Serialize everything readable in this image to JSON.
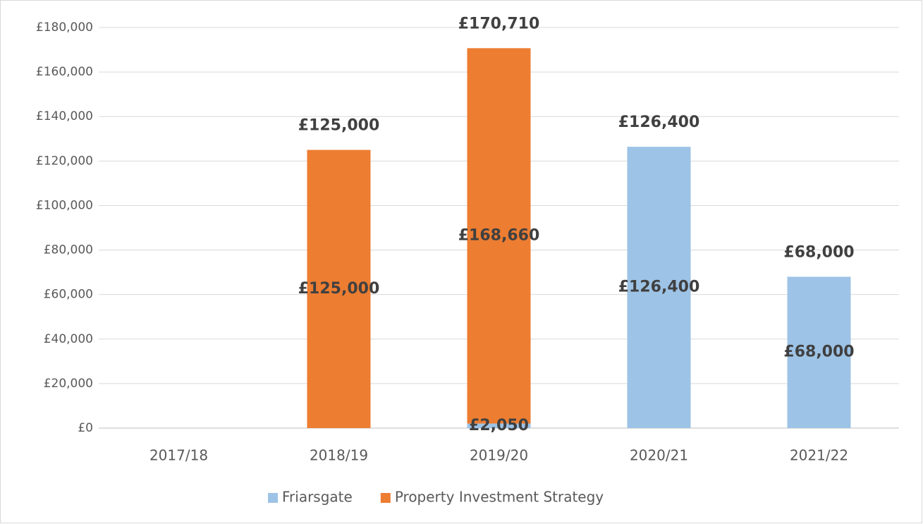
{
  "chart_data": {
    "type": "stacked_bar",
    "categories": [
      "2017/18",
      "2018/19",
      "2019/20",
      "2020/21",
      "2021/22"
    ],
    "series": [
      {
        "name": "Friarsgate",
        "color": "#9dc3e6",
        "values": [
          null,
          null,
          2050,
          126400,
          68000
        ],
        "value_labels": [
          null,
          null,
          "£2,050",
          "£126,400",
          "£68,000"
        ]
      },
      {
        "name": "Property Investment Strategy",
        "color": "#ed7d31",
        "values": [
          null,
          125000,
          168660,
          null,
          null
        ],
        "value_labels": [
          null,
          "£125,000",
          "£168,660",
          null,
          null
        ]
      }
    ],
    "totals": [
      null,
      125000,
      170710,
      126400,
      68000
    ],
    "total_labels": [
      null,
      "£125,000",
      "£170,710",
      "£126,400",
      "£68,000"
    ],
    "ylim": [
      0,
      180000
    ],
    "yticks": [
      {
        "value": 0,
        "label": "£0"
      },
      {
        "value": 20000,
        "label": "£20,000"
      },
      {
        "value": 40000,
        "label": "£40,000"
      },
      {
        "value": 60000,
        "label": "£60,000"
      },
      {
        "value": 80000,
        "label": "£80,000"
      },
      {
        "value": 100000,
        "label": "£100,000"
      },
      {
        "value": 120000,
        "label": "£120,000"
      },
      {
        "value": 140000,
        "label": "£140,000"
      },
      {
        "value": 160000,
        "label": "£160,000"
      },
      {
        "value": 180000,
        "label": "£180,000"
      }
    ],
    "grid": true,
    "legend": "bottom"
  }
}
